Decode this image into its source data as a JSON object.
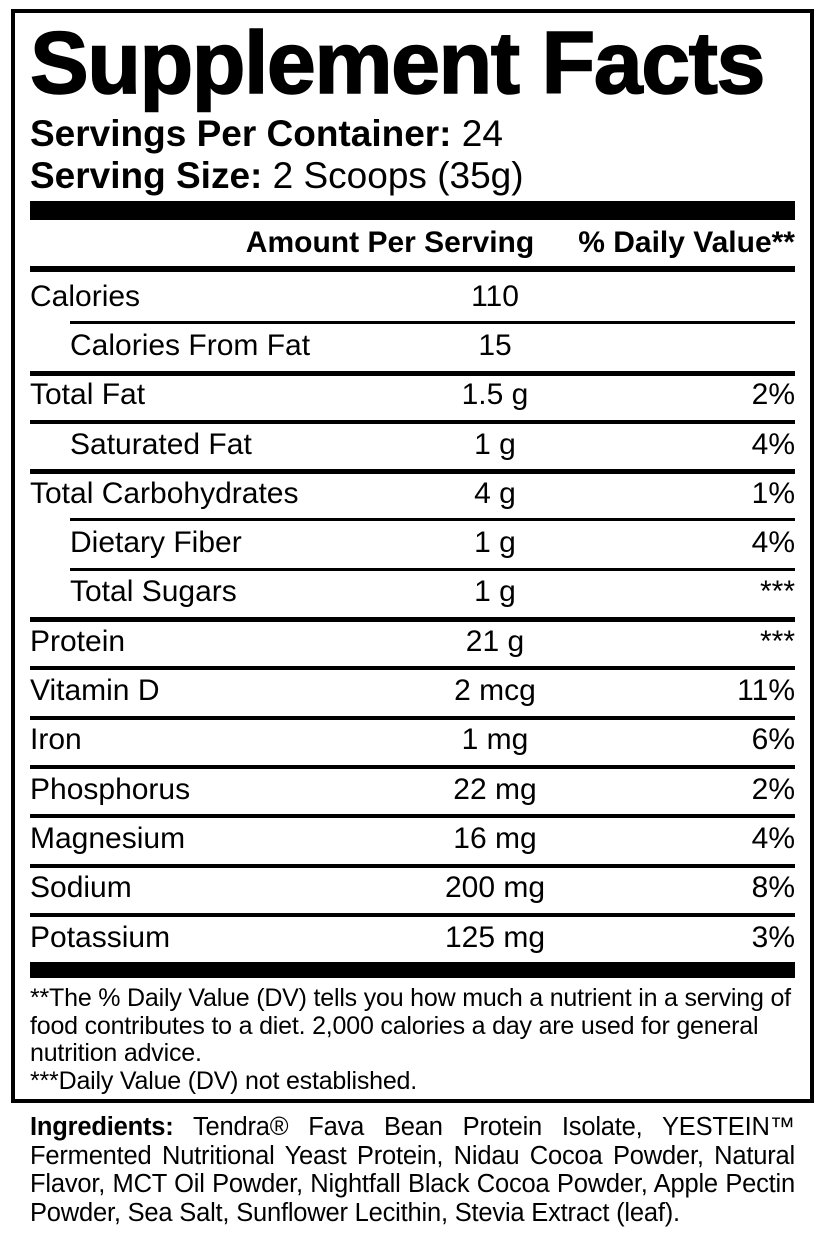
{
  "panel": {
    "title": "Supplement Facts",
    "servings_per_container": {
      "label": "Servings Per Container:",
      "value": "24"
    },
    "serving_size": {
      "label": "Serving Size:",
      "value": "2 Scoops (35g)"
    },
    "columns": {
      "amount": "Amount Per Serving",
      "daily_value": "% Daily Value**"
    },
    "rows": [
      {
        "name": "Calories",
        "amount": "110",
        "dv": "",
        "indent": false,
        "divider_above": "none"
      },
      {
        "name": "Calories From Fat",
        "amount": "15",
        "dv": "",
        "indent": true,
        "divider_above": "indent"
      },
      {
        "name": "Total Fat",
        "amount": "1.5 g",
        "dv": "2%",
        "indent": false,
        "divider_above": "thick"
      },
      {
        "name": "Saturated Fat",
        "amount": "1 g",
        "dv": "4%",
        "indent": true,
        "divider_above": "full"
      },
      {
        "name": "Total Carbohydrates",
        "amount": "4 g",
        "dv": "1%",
        "indent": false,
        "divider_above": "thick"
      },
      {
        "name": "Dietary Fiber",
        "amount": "1 g",
        "dv": "4%",
        "indent": true,
        "divider_above": "indent"
      },
      {
        "name": "Total Sugars",
        "amount": "1 g",
        "dv": "***",
        "indent": true,
        "divider_above": "indent"
      },
      {
        "name": "Protein",
        "amount": "21 g",
        "dv": "***",
        "indent": false,
        "divider_above": "thick"
      },
      {
        "name": "Vitamin D",
        "amount": "2 mcg",
        "dv": "11%",
        "indent": false,
        "divider_above": "full"
      },
      {
        "name": "Iron",
        "amount": "1 mg",
        "dv": "6%",
        "indent": false,
        "divider_above": "full"
      },
      {
        "name": "Phosphorus",
        "amount": "22 mg",
        "dv": "2%",
        "indent": false,
        "divider_above": "full"
      },
      {
        "name": "Magnesium",
        "amount": "16 mg",
        "dv": "4%",
        "indent": false,
        "divider_above": "full"
      },
      {
        "name": "Sodium",
        "amount": "200 mg",
        "dv": "8%",
        "indent": false,
        "divider_above": "full"
      },
      {
        "name": "Potassium",
        "amount": "125 mg",
        "dv": "3%",
        "indent": false,
        "divider_above": "full"
      }
    ],
    "footnotes": {
      "daily_value_note": "**The % Daily Value (DV) tells you how much a nutrient in a serving of food contributes to a diet. 2,000 calories a day are used for general nutrition advice.",
      "not_established_note": "***Daily Value (DV) not established."
    }
  },
  "ingredients": {
    "label": "Ingredients:",
    "text": "Tendra® Fava Bean Protein Isolate, YESTEIN™ Fermented Nutritional Yeast Protein, Nidau Cocoa Powder, Natural Flavor, MCT Oil Powder, Nightfall Black Cocoa Powder, Apple Pectin Powder, Sea Salt, Sunflower Lecithin, Stevia Extract (leaf)."
  },
  "colors": {
    "text": "#000000",
    "background": "#ffffff"
  }
}
